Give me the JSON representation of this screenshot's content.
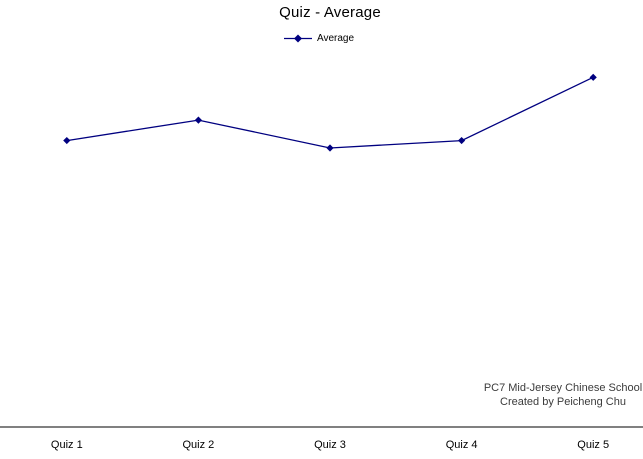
{
  "title": "Quiz - Average",
  "legend": {
    "items": [
      {
        "label": "Average",
        "marker": "diamond-on-line"
      }
    ]
  },
  "footer": {
    "line1": "PC7 Mid-Jersey Chinese School",
    "line2": "Created by Peicheng Chu"
  },
  "colors": {
    "series": "#000080",
    "axis": "#000000",
    "title_text": "#000000",
    "footer_text": "#3b3b3b",
    "background": "#ffffff"
  },
  "chart_data": {
    "type": "line",
    "title": "Quiz - Average",
    "categories": [
      "Quiz 1",
      "Quiz 2",
      "Quiz 3",
      "Quiz 4",
      "Quiz 5"
    ],
    "series": [
      {
        "name": "Average",
        "values": [
          77,
          82.5,
          75,
          77,
          94
        ]
      }
    ],
    "xlabel": "",
    "ylabel": "",
    "ylim": [
      0,
      100
    ],
    "values_estimated": true,
    "grid": false,
    "y_axis_visible": false,
    "marker": "diamond",
    "legend_position": "top-center",
    "annotations": [
      "PC7 Mid-Jersey Chinese School",
      "Created by Peicheng Chu"
    ]
  }
}
